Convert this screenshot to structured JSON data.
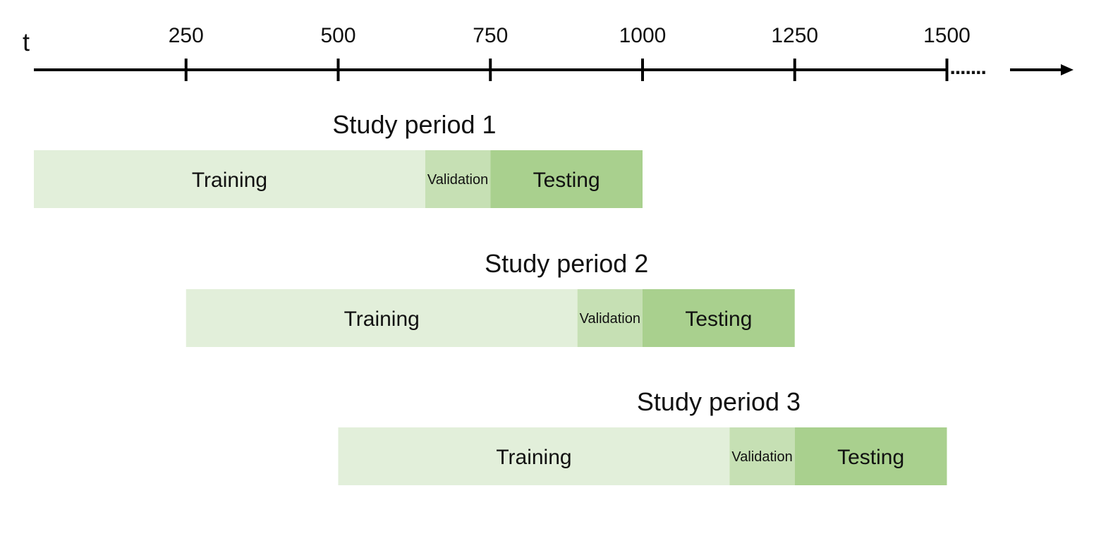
{
  "axis": {
    "symbol": "t",
    "ticks": [
      250,
      500,
      750,
      1000,
      1250,
      1500
    ],
    "ellipsis": "......."
  },
  "segment_labels": {
    "training": "Training",
    "validation": "Validation",
    "testing": "Testing"
  },
  "colors": {
    "axis": "#000000",
    "training": "#e2efda",
    "validation": "#c6e0b4",
    "testing": "#a9d08e"
  },
  "study_periods": [
    {
      "title": "Study period 1",
      "training": [
        0,
        643
      ],
      "validation": [
        643,
        750
      ],
      "testing": [
        750,
        1000
      ]
    },
    {
      "title": "Study period 2",
      "training": [
        250,
        893
      ],
      "validation": [
        893,
        1000
      ],
      "testing": [
        1000,
        1250
      ]
    },
    {
      "title": "Study period 3",
      "training": [
        500,
        1143
      ],
      "validation": [
        1143,
        1250
      ],
      "testing": [
        1250,
        1500
      ]
    }
  ]
}
